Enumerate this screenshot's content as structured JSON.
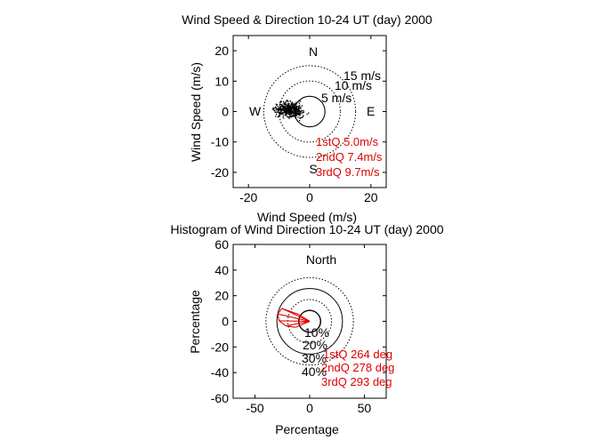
{
  "chart_data": [
    {
      "type": "scatter",
      "title": "Wind Speed & Direction 10-24 UT (day) 2000",
      "xlabel": "Wind Speed (m/s)",
      "ylabel": "Wind Speed (m/s)",
      "xlim": [
        -25,
        25
      ],
      "ylim": [
        -25,
        25
      ],
      "xticks": [
        "-20",
        "0",
        "20"
      ],
      "yticks": [
        "20",
        "10",
        "0",
        "-10",
        "-20"
      ],
      "xtick_values": [
        -20,
        0,
        20
      ],
      "ytick_values": [
        20,
        10,
        0,
        -10,
        -20
      ],
      "compass": {
        "north": "N",
        "south": "S",
        "east": "E",
        "west": "W"
      },
      "rings": [
        {
          "radius": 5,
          "label": "5 m/s"
        },
        {
          "radius": 10,
          "label": "10 m/s"
        },
        {
          "radius": 15,
          "label": "15 m/s"
        }
      ],
      "scatter_cloud": {
        "center": [
          -7,
          0.8
        ],
        "sx": 3.3,
        "sy": 1.6,
        "count": 520
      },
      "quartiles": [
        "1stQ 5.0m/s",
        "2ndQ 7.4m/s",
        "3rdQ 9.7m/s"
      ]
    },
    {
      "type": "polar-histogram",
      "title": "Histogram of Wind Direction 10-24 UT (day) 2000",
      "xlabel": "Percentage",
      "ylabel": "Percentage",
      "xlim": [
        -70,
        70
      ],
      "ylim": [
        -60,
        60
      ],
      "xticks": [
        "-50",
        "0",
        "50"
      ],
      "yticks": [
        "60",
        "40",
        "20",
        "0",
        "-20",
        "-40",
        "-60"
      ],
      "xtick_values": [
        -50,
        0,
        50
      ],
      "ytick_values": [
        60,
        40,
        20,
        0,
        -20,
        -40,
        -60
      ],
      "north_label": "North",
      "rings": [
        {
          "radius": 10,
          "label": "10%"
        },
        {
          "radius": 20,
          "label": "20%"
        },
        {
          "radius": 30,
          "label": "30%"
        },
        {
          "radius": 40,
          "label": "40%"
        }
      ],
      "direction_percentages": [
        {
          "direction_deg": 247,
          "percent": 14
        },
        {
          "direction_deg": 259,
          "percent": 22
        },
        {
          "direction_deg": 271,
          "percent": 28
        },
        {
          "direction_deg": 283,
          "percent": 30
        },
        {
          "direction_deg": 295,
          "percent": 28
        },
        {
          "direction_deg": 302,
          "percent": 12
        }
      ],
      "quartiles": [
        "1stQ 264 deg",
        "2ndQ 278 deg",
        "3rdQ 293 deg"
      ]
    }
  ]
}
